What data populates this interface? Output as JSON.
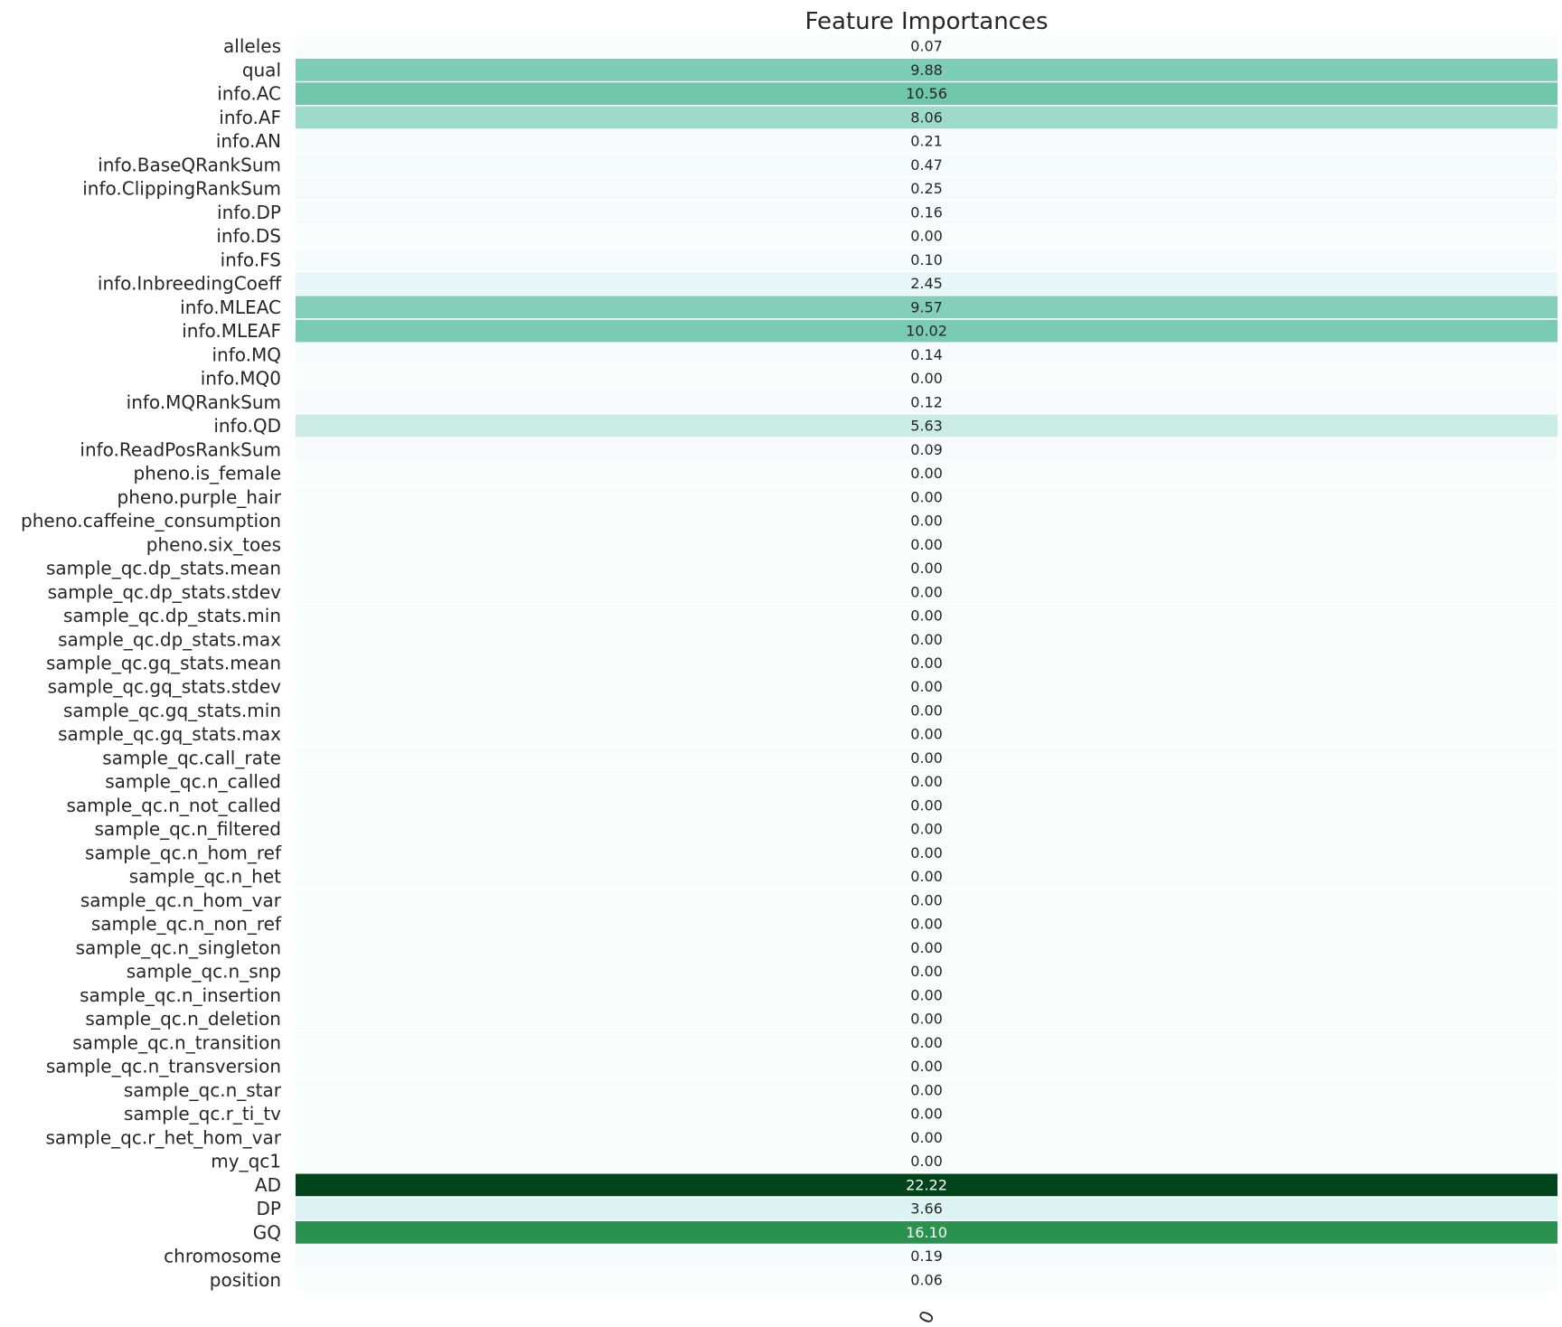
{
  "chart_data": {
    "type": "heatmap",
    "title": "Feature Importances",
    "xlabel": "",
    "ylabel": "",
    "columns": [
      "0"
    ],
    "rows": [
      "alleles",
      "qual",
      "info.AC",
      "info.AF",
      "info.AN",
      "info.BaseQRankSum",
      "info.ClippingRankSum",
      "info.DP",
      "info.DS",
      "info.FS",
      "info.InbreedingCoeff",
      "info.MLEAC",
      "info.MLEAF",
      "info.MQ",
      "info.MQ0",
      "info.MQRankSum",
      "info.QD",
      "info.ReadPosRankSum",
      "pheno.is_female",
      "pheno.purple_hair",
      "pheno.caffeine_consumption",
      "pheno.six_toes",
      "sample_qc.dp_stats.mean",
      "sample_qc.dp_stats.stdev",
      "sample_qc.dp_stats.min",
      "sample_qc.dp_stats.max",
      "sample_qc.gq_stats.mean",
      "sample_qc.gq_stats.stdev",
      "sample_qc.gq_stats.min",
      "sample_qc.gq_stats.max",
      "sample_qc.call_rate",
      "sample_qc.n_called",
      "sample_qc.n_not_called",
      "sample_qc.n_filtered",
      "sample_qc.n_hom_ref",
      "sample_qc.n_het",
      "sample_qc.n_hom_var",
      "sample_qc.n_non_ref",
      "sample_qc.n_singleton",
      "sample_qc.n_snp",
      "sample_qc.n_insertion",
      "sample_qc.n_deletion",
      "sample_qc.n_transition",
      "sample_qc.n_transversion",
      "sample_qc.n_star",
      "sample_qc.r_ti_tv",
      "sample_qc.r_het_hom_var",
      "my_qc1",
      "AD",
      "DP",
      "GQ",
      "chromosome",
      "position"
    ],
    "values": [
      0.07,
      9.88,
      10.56,
      8.06,
      0.21,
      0.47,
      0.25,
      0.16,
      0.0,
      0.1,
      2.45,
      9.57,
      10.02,
      0.14,
      0.0,
      0.12,
      5.63,
      0.09,
      0.0,
      0.0,
      0.0,
      0.0,
      0.0,
      0.0,
      0.0,
      0.0,
      0.0,
      0.0,
      0.0,
      0.0,
      0.0,
      0.0,
      0.0,
      0.0,
      0.0,
      0.0,
      0.0,
      0.0,
      0.0,
      0.0,
      0.0,
      0.0,
      0.0,
      0.0,
      0.0,
      0.0,
      0.0,
      0.0,
      22.22,
      3.66,
      16.1,
      0.19,
      0.06
    ],
    "value_format": "0.00",
    "colormap": "BuGn",
    "color_range": [
      0,
      22.22
    ],
    "colorbar": false,
    "annotations": true,
    "cell_separator_color": "#ffffff"
  }
}
